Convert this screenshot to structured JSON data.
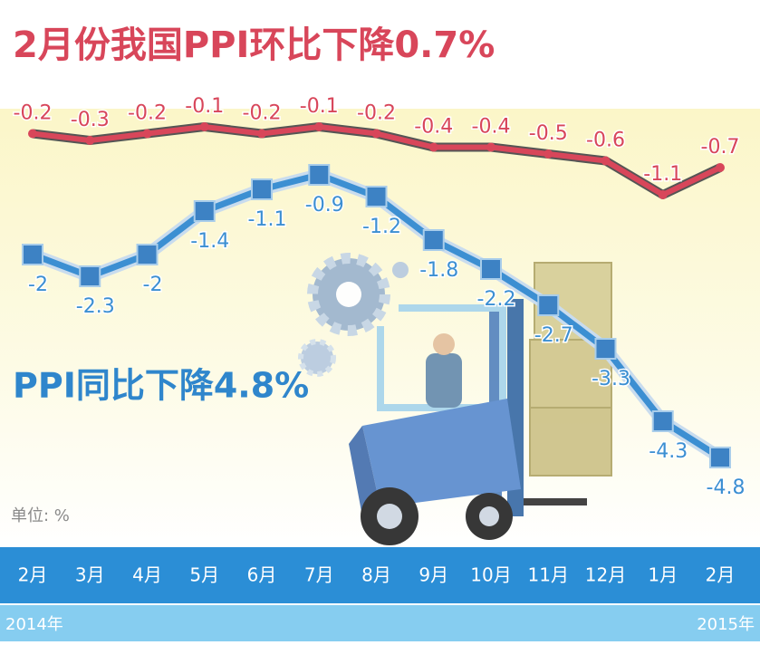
{
  "chart_data": {
    "type": "line",
    "title": "2月份我国PPI环比下降0.7%",
    "subtitle": "PPI同比下降4.8%",
    "unit_label": "单位: %",
    "categories": [
      "2月",
      "3月",
      "4月",
      "5月",
      "6月",
      "7月",
      "8月",
      "9月",
      "10月",
      "11月",
      "12月",
      "1月",
      "2月"
    ],
    "year_labels": [
      "2014年",
      "2015年"
    ],
    "series": [
      {
        "color": "#d8465a",
        "values": [
          -0.2,
          -0.3,
          -0.2,
          -0.1,
          -0.2,
          -0.1,
          -0.2,
          -0.4,
          -0.4,
          -0.5,
          -0.6,
          -1.1,
          -0.7
        ]
      },
      {
        "color": "#3c8fd2",
        "values": [
          -2.0,
          -2.3,
          -2.0,
          -1.4,
          -1.1,
          -0.9,
          -1.2,
          -1.8,
          -2.2,
          -2.7,
          -3.3,
          -4.3,
          -4.8
        ]
      }
    ]
  }
}
